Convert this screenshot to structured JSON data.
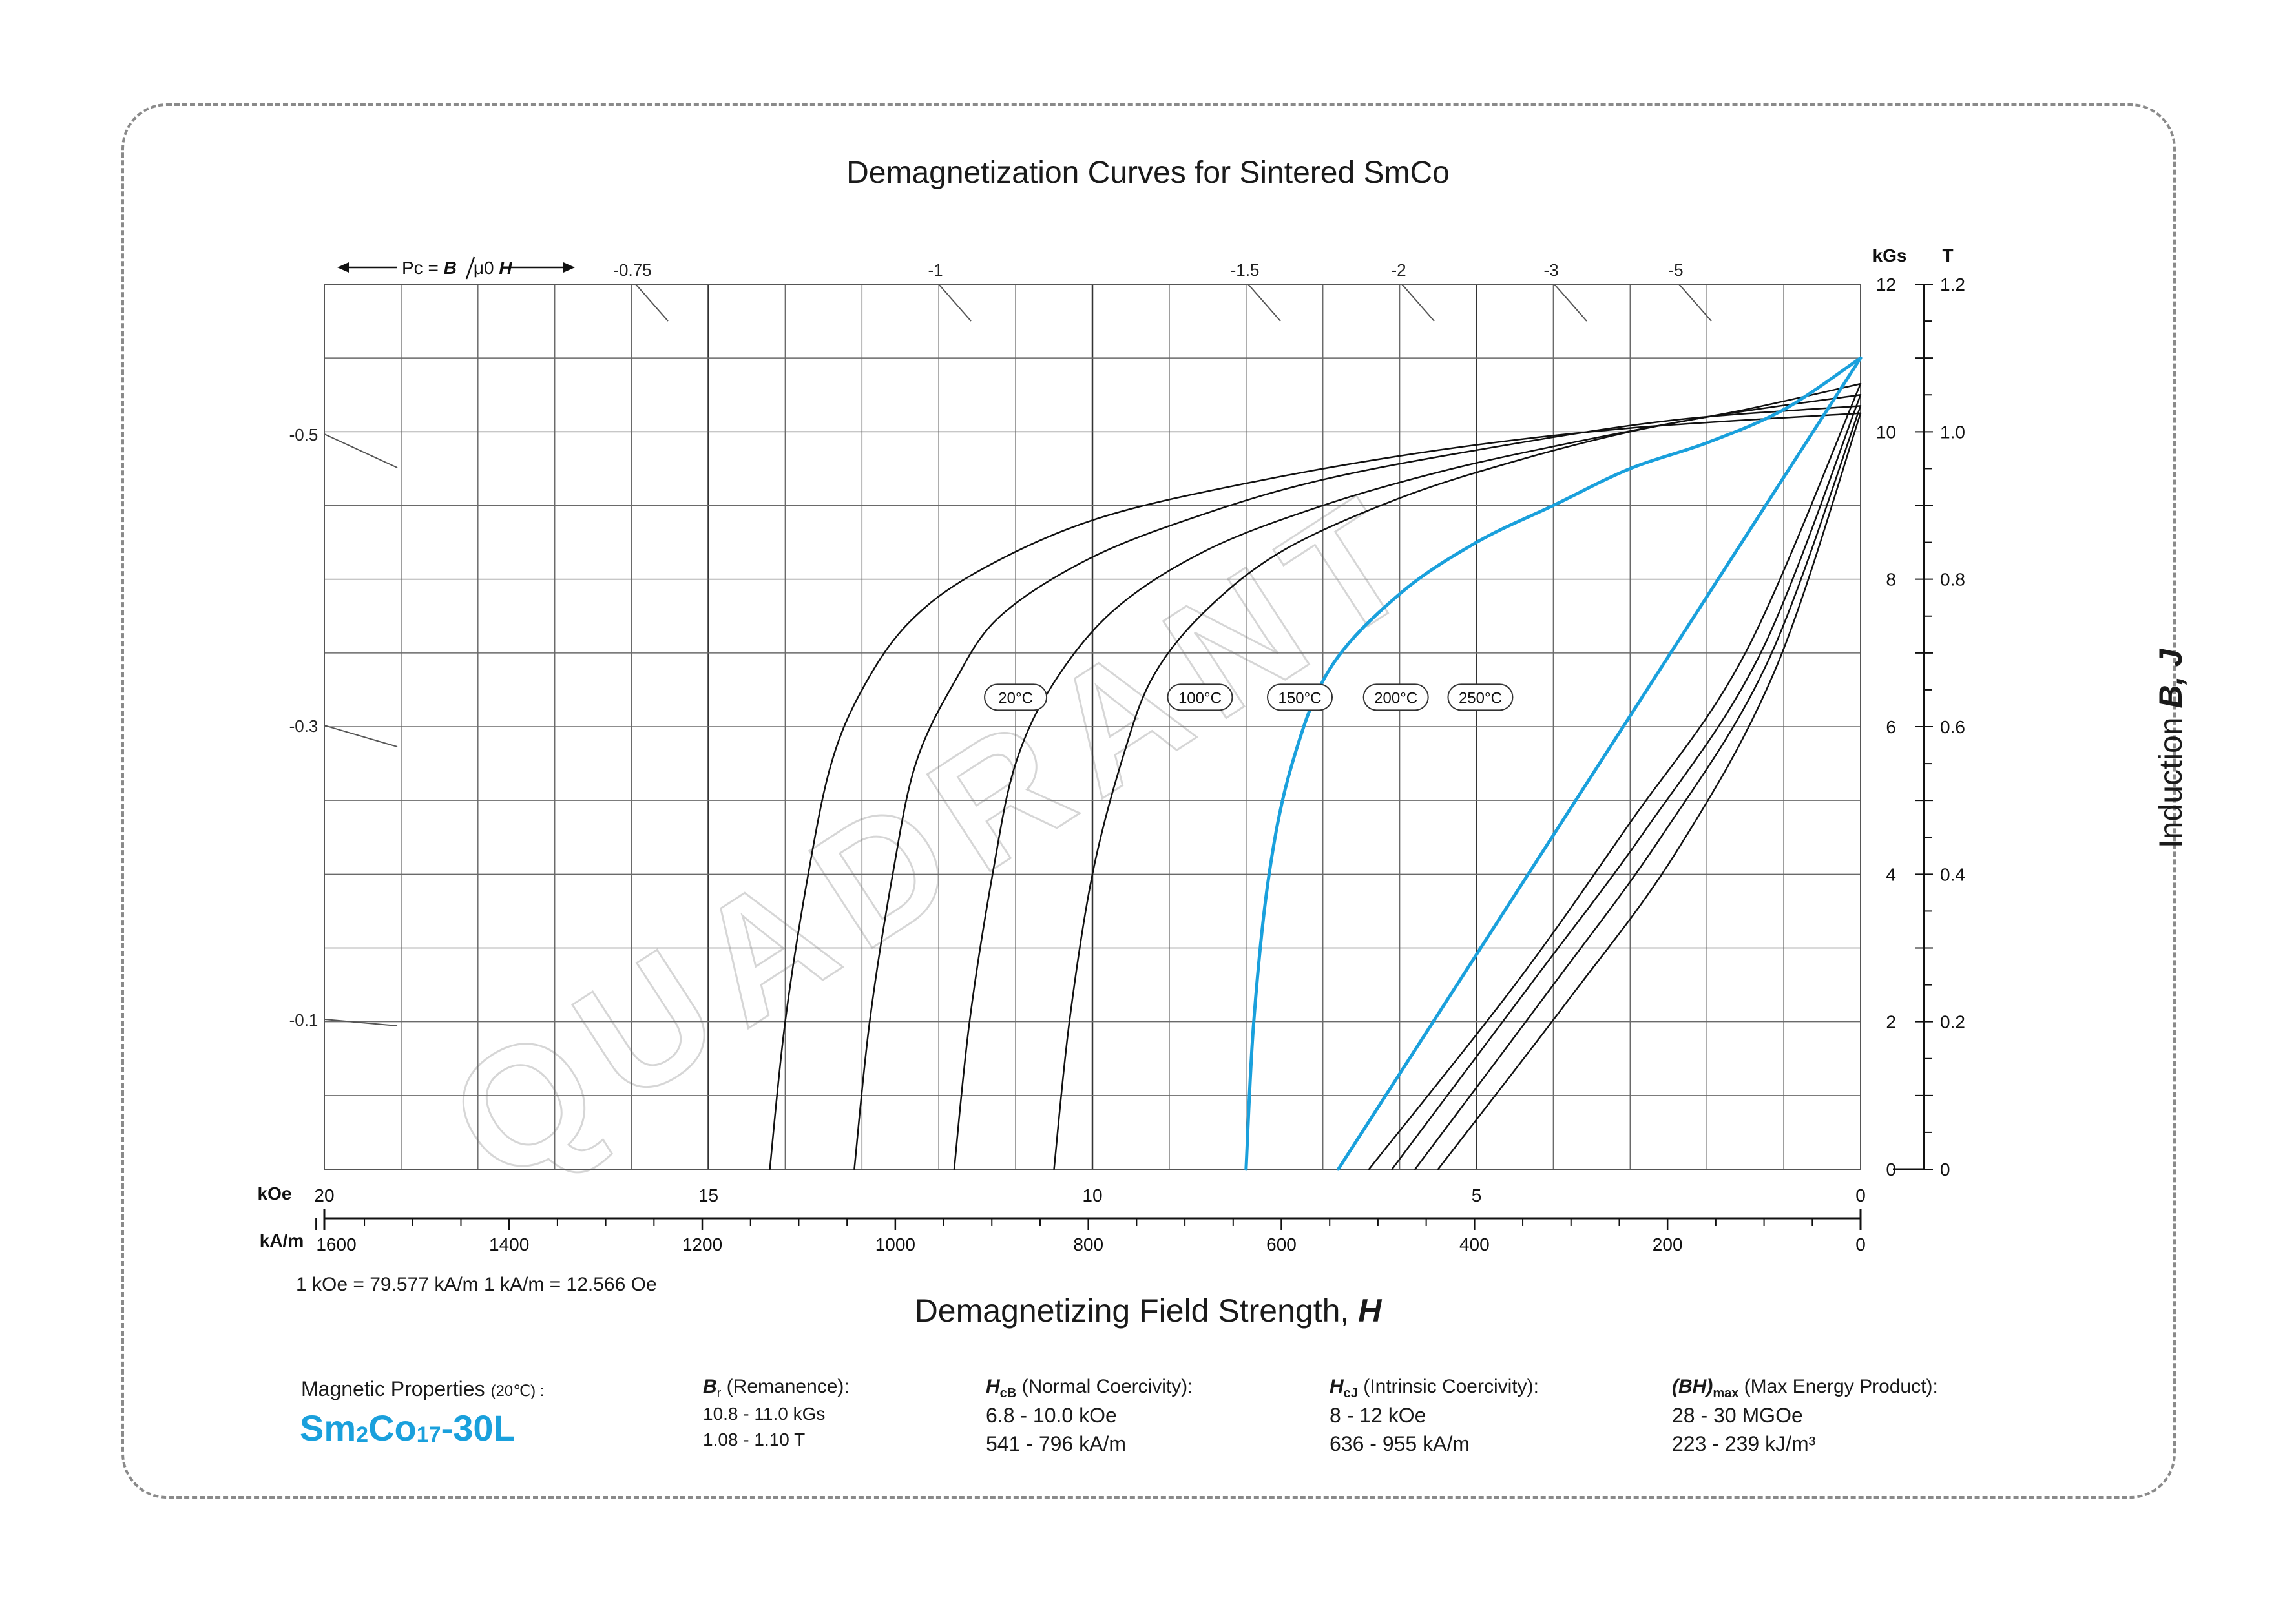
{
  "title": "Demagnetization Curves for Sintered SmCo",
  "x_axis": {
    "title_text": "Demagnetizing Field Strength, ",
    "title_symbol": "H",
    "koe_unit": "kOe",
    "kam_unit": "kA/m",
    "koe_ticks": [
      "20",
      "15",
      "10",
      "5",
      "0"
    ],
    "kam_ticks": [
      "1600",
      "1400",
      "1200",
      "1000",
      "800",
      "600",
      "400",
      "200",
      "0"
    ],
    "conversion": "1 kOe = 79.577 kA/m   1 kA/m = 12.566 Oe"
  },
  "y_axis": {
    "title_text": "Induction  ",
    "title_symbol": "B, J",
    "kgs_unit": "kGs",
    "t_unit": "T",
    "kgs_ticks": [
      "12",
      "10",
      "8",
      "6",
      "4",
      "2",
      "0"
    ],
    "t_ticks": [
      "1.2",
      "1.0",
      "0.8",
      "0.6",
      "0.4",
      "0.2",
      "0"
    ]
  },
  "permeance": {
    "label_prefix": "Pc = ",
    "label_b": "B",
    "label_mu": "μ0 ",
    "label_h": "H",
    "top_labels": [
      "-0.75",
      "-1",
      "-1.5",
      "-2",
      "-3",
      "-5"
    ],
    "left_labels": [
      "-0.5",
      "-0.3",
      "-0.1"
    ]
  },
  "chart_data": {
    "type": "line",
    "title": "Demagnetization Curves for Sintered SmCo",
    "xlabel": "Demagnetizing Field Strength, H (kOe)",
    "ylabel": "Induction B, J (kGs)",
    "xlim": [
      20,
      0
    ],
    "ylim": [
      0,
      12
    ],
    "grid": true,
    "series": [
      {
        "name": "20°C",
        "kind": "J",
        "color": "#1aa0dc",
        "points": [
          [
            8.0,
            0
          ],
          [
            7.9,
            2.0
          ],
          [
            7.7,
            4.0
          ],
          [
            7.4,
            5.5
          ],
          [
            6.9,
            6.8
          ],
          [
            6.0,
            7.8
          ],
          [
            5.0,
            8.5
          ],
          [
            4.0,
            9.0
          ],
          [
            3.0,
            9.5
          ],
          [
            2.0,
            9.85
          ],
          [
            1.0,
            10.3
          ],
          [
            0.0,
            11.0
          ]
        ]
      },
      {
        "name": "100°C",
        "kind": "J",
        "color": "#111111",
        "points": [
          [
            10.5,
            0
          ],
          [
            10.3,
            2.0
          ],
          [
            10.0,
            4.0
          ],
          [
            9.6,
            5.6
          ],
          [
            9.2,
            6.7
          ],
          [
            8.5,
            7.6
          ],
          [
            7.5,
            8.4
          ],
          [
            6.0,
            9.1
          ],
          [
            4.5,
            9.6
          ],
          [
            3.0,
            10.0
          ],
          [
            1.5,
            10.3
          ],
          [
            0.0,
            10.65
          ]
        ]
      },
      {
        "name": "150°C",
        "kind": "J",
        "color": "#111111",
        "points": [
          [
            11.8,
            0
          ],
          [
            11.6,
            2.0
          ],
          [
            11.3,
            4.0
          ],
          [
            11.0,
            5.5
          ],
          [
            10.5,
            6.6
          ],
          [
            9.7,
            7.6
          ],
          [
            8.5,
            8.4
          ],
          [
            7.0,
            9.0
          ],
          [
            5.5,
            9.45
          ],
          [
            4.0,
            9.8
          ],
          [
            2.0,
            10.2
          ],
          [
            0.0,
            10.5
          ]
        ]
      },
      {
        "name": "200°C",
        "kind": "J",
        "color": "#111111",
        "points": [
          [
            13.1,
            0
          ],
          [
            12.9,
            2.0
          ],
          [
            12.6,
            4.0
          ],
          [
            12.3,
            5.5
          ],
          [
            11.8,
            6.6
          ],
          [
            11.2,
            7.5
          ],
          [
            10.0,
            8.3
          ],
          [
            8.5,
            8.9
          ],
          [
            7.0,
            9.35
          ],
          [
            5.0,
            9.75
          ],
          [
            2.5,
            10.15
          ],
          [
            0.0,
            10.35
          ]
        ]
      },
      {
        "name": "250°C",
        "kind": "J",
        "color": "#111111",
        "points": [
          [
            14.2,
            0
          ],
          [
            14.0,
            2.0
          ],
          [
            13.7,
            4.0
          ],
          [
            13.4,
            5.5
          ],
          [
            13.0,
            6.5
          ],
          [
            12.4,
            7.4
          ],
          [
            11.5,
            8.1
          ],
          [
            10.0,
            8.8
          ],
          [
            8.0,
            9.3
          ],
          [
            5.5,
            9.75
          ],
          [
            3.0,
            10.05
          ],
          [
            0.0,
            10.25
          ]
        ]
      },
      {
        "name": "B 20°C",
        "kind": "B",
        "color": "#1aa0dc",
        "points": [
          [
            6.8,
            0
          ],
          [
            0.0,
            11.0
          ]
        ]
      },
      {
        "name": "B 100°C",
        "kind": "B",
        "color": "#111111",
        "points": [
          [
            6.4,
            0
          ],
          [
            4.5,
            2.5
          ],
          [
            3.0,
            4.7
          ],
          [
            1.5,
            7.0
          ],
          [
            0.0,
            10.65
          ]
        ]
      },
      {
        "name": "B 150°C",
        "kind": "B",
        "color": "#111111",
        "points": [
          [
            6.1,
            0
          ],
          [
            4.3,
            2.5
          ],
          [
            2.8,
            4.6
          ],
          [
            1.3,
            7.0
          ],
          [
            0.0,
            10.5
          ]
        ]
      },
      {
        "name": "B 200°C",
        "kind": "B",
        "color": "#111111",
        "points": [
          [
            5.8,
            0
          ],
          [
            4.0,
            2.5
          ],
          [
            2.6,
            4.5
          ],
          [
            1.2,
            6.9
          ],
          [
            0.0,
            10.35
          ]
        ]
      },
      {
        "name": "B 250°C",
        "kind": "B",
        "color": "#111111",
        "points": [
          [
            5.5,
            0
          ],
          [
            3.8,
            2.3
          ],
          [
            2.4,
            4.3
          ],
          [
            1.1,
            6.8
          ],
          [
            0.0,
            10.25
          ]
        ]
      }
    ],
    "curve_labels": [
      {
        "text": "20°C",
        "x": 11.0,
        "y": 6.4
      },
      {
        "text": "100°C",
        "x": 8.6,
        "y": 6.4
      },
      {
        "text": "150°C",
        "x": 7.3,
        "y": 6.4
      },
      {
        "text": "200°C",
        "x": 6.05,
        "y": 6.4
      },
      {
        "text": "250°C",
        "x": 4.95,
        "y": 6.4
      }
    ]
  },
  "properties": {
    "heading": "Magnetic Properties ",
    "heading_temp": "(20℃) :",
    "grade_a": "Sm",
    "grade_sub1": "2",
    "grade_b": "Co",
    "grade_sub2": "17",
    "grade_c": "-30L",
    "columns": [
      {
        "symbol": "B",
        "sub": "r",
        "name": " (Remanence):",
        "v1": "10.8 - 11.0 kGs",
        "v2": "1.08 - 1.10 T"
      },
      {
        "symbol": "H",
        "sub": "cB",
        "name": " (Normal Coercivity):",
        "v1": "6.8 - 10.0 kOe",
        "v2": "541 - 796 kA/m"
      },
      {
        "symbol": "H",
        "sub": "cJ",
        "name": " (Intrinsic Coercivity):",
        "v1": "8 - 12 kOe",
        "v2": "636 - 955 kA/m"
      },
      {
        "symbol": "(BH)",
        "sub": "max",
        "name": " (Max Energy Product):",
        "v1": "28 - 30 MGOe",
        "v2": "223 - 239 kJ/m³"
      }
    ]
  },
  "watermark": "QUADRANT"
}
